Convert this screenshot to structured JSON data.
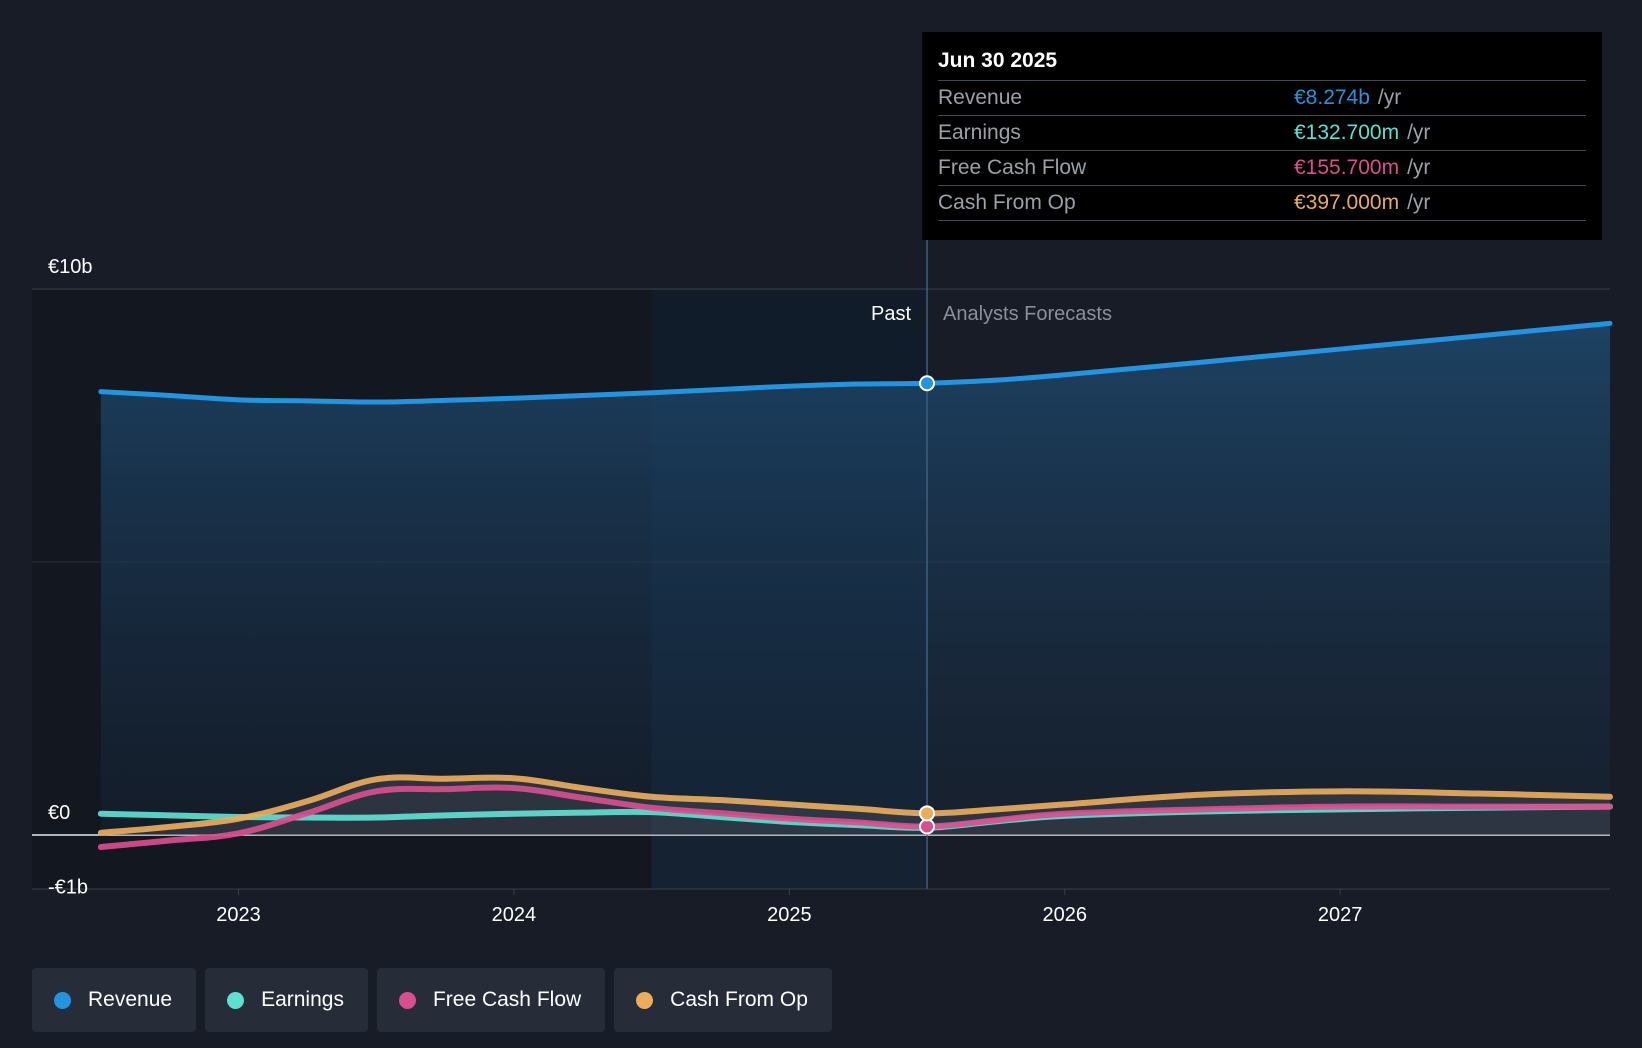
{
  "chart_data": {
    "type": "line",
    "x_unit": "year",
    "y_unit": "€ billions",
    "xlim": [
      2022.25,
      2027.98
    ],
    "ylim": [
      -1,
      10
    ],
    "y_ticks": [
      {
        "value": 10,
        "label": "€10b"
      },
      {
        "value": 0,
        "label": "€0"
      },
      {
        "value": -1,
        "label": "-€1b"
      }
    ],
    "x_ticks": [
      {
        "value": 2023,
        "label": "2023"
      },
      {
        "value": 2024,
        "label": "2024"
      },
      {
        "value": 2025,
        "label": "2025"
      },
      {
        "value": 2026,
        "label": "2026"
      },
      {
        "value": 2027,
        "label": "2027"
      }
    ],
    "gridlines": [
      5
    ],
    "past_start": 2024.5,
    "divider_x": 2025.5,
    "past_label": "Past",
    "forecast_label": "Analysts Forecasts",
    "series": [
      {
        "name": "Revenue",
        "color": "#2394e2",
        "area": true,
        "points": [
          [
            2022.5,
            8.12
          ],
          [
            2022.75,
            8.05
          ],
          [
            2023.0,
            7.97
          ],
          [
            2023.25,
            7.95
          ],
          [
            2023.5,
            7.93
          ],
          [
            2023.75,
            7.96
          ],
          [
            2024.0,
            8.0
          ],
          [
            2024.25,
            8.05
          ],
          [
            2024.5,
            8.1
          ],
          [
            2024.75,
            8.16
          ],
          [
            2025.0,
            8.22
          ],
          [
            2025.25,
            8.26
          ],
          [
            2025.5,
            8.274
          ],
          [
            2025.75,
            8.33
          ],
          [
            2026.0,
            8.43
          ],
          [
            2026.5,
            8.66
          ],
          [
            2027.0,
            8.9
          ],
          [
            2027.5,
            9.14
          ],
          [
            2027.98,
            9.37
          ]
        ]
      },
      {
        "name": "Earnings",
        "color": "#5ee0d0",
        "area": false,
        "points": [
          [
            2022.5,
            0.39
          ],
          [
            2022.75,
            0.36
          ],
          [
            2023.0,
            0.33
          ],
          [
            2023.25,
            0.32
          ],
          [
            2023.5,
            0.32
          ],
          [
            2023.75,
            0.36
          ],
          [
            2024.0,
            0.39
          ],
          [
            2024.25,
            0.41
          ],
          [
            2024.5,
            0.42
          ],
          [
            2024.75,
            0.33
          ],
          [
            2025.0,
            0.24
          ],
          [
            2025.25,
            0.18
          ],
          [
            2025.5,
            0.133
          ],
          [
            2025.75,
            0.25
          ],
          [
            2026.0,
            0.35
          ],
          [
            2026.5,
            0.43
          ],
          [
            2027.0,
            0.47
          ],
          [
            2027.5,
            0.5
          ],
          [
            2027.98,
            0.52
          ]
        ]
      },
      {
        "name": "Free Cash Flow",
        "color": "#d84e8e",
        "area": false,
        "points": [
          [
            2022.5,
            -0.22
          ],
          [
            2022.75,
            -0.1
          ],
          [
            2023.0,
            0.03
          ],
          [
            2023.25,
            0.4
          ],
          [
            2023.5,
            0.8
          ],
          [
            2023.75,
            0.84
          ],
          [
            2024.0,
            0.86
          ],
          [
            2024.25,
            0.68
          ],
          [
            2024.5,
            0.5
          ],
          [
            2024.75,
            0.4
          ],
          [
            2025.0,
            0.3
          ],
          [
            2025.25,
            0.23
          ],
          [
            2025.5,
            0.156
          ],
          [
            2025.75,
            0.27
          ],
          [
            2026.0,
            0.39
          ],
          [
            2026.5,
            0.47
          ],
          [
            2027.0,
            0.52
          ],
          [
            2027.5,
            0.52
          ],
          [
            2027.98,
            0.52
          ]
        ]
      },
      {
        "name": "Cash From Op",
        "color": "#eaad5c",
        "area": false,
        "points": [
          [
            2022.5,
            0.04
          ],
          [
            2022.75,
            0.15
          ],
          [
            2023.0,
            0.3
          ],
          [
            2023.25,
            0.62
          ],
          [
            2023.5,
            1.02
          ],
          [
            2023.75,
            1.03
          ],
          [
            2024.0,
            1.04
          ],
          [
            2024.25,
            0.86
          ],
          [
            2024.5,
            0.7
          ],
          [
            2024.75,
            0.64
          ],
          [
            2025.0,
            0.56
          ],
          [
            2025.25,
            0.48
          ],
          [
            2025.5,
            0.397
          ],
          [
            2025.75,
            0.47
          ],
          [
            2026.0,
            0.56
          ],
          [
            2026.5,
            0.74
          ],
          [
            2027.0,
            0.8
          ],
          [
            2027.5,
            0.76
          ],
          [
            2027.98,
            0.7
          ]
        ]
      }
    ]
  },
  "tooltip": {
    "date": "Jun 30 2025",
    "unit": "/yr",
    "rows": [
      {
        "name": "Revenue",
        "value": "€8.274b",
        "color": "#2394e2"
      },
      {
        "name": "Earnings",
        "value": "€132.700m",
        "color": "#5ee0d0"
      },
      {
        "name": "Free Cash Flow",
        "value": "€155.700m",
        "color": "#d84e8e"
      },
      {
        "name": "Cash From Op",
        "value": "€397.000m",
        "color": "#eaad5c"
      }
    ]
  },
  "legend": [
    {
      "label": "Revenue",
      "color": "#2394e2"
    },
    {
      "label": "Earnings",
      "color": "#5ee0d0"
    },
    {
      "label": "Free Cash Flow",
      "color": "#d84e8e"
    },
    {
      "label": "Cash From Op",
      "color": "#eaad5c"
    }
  ]
}
